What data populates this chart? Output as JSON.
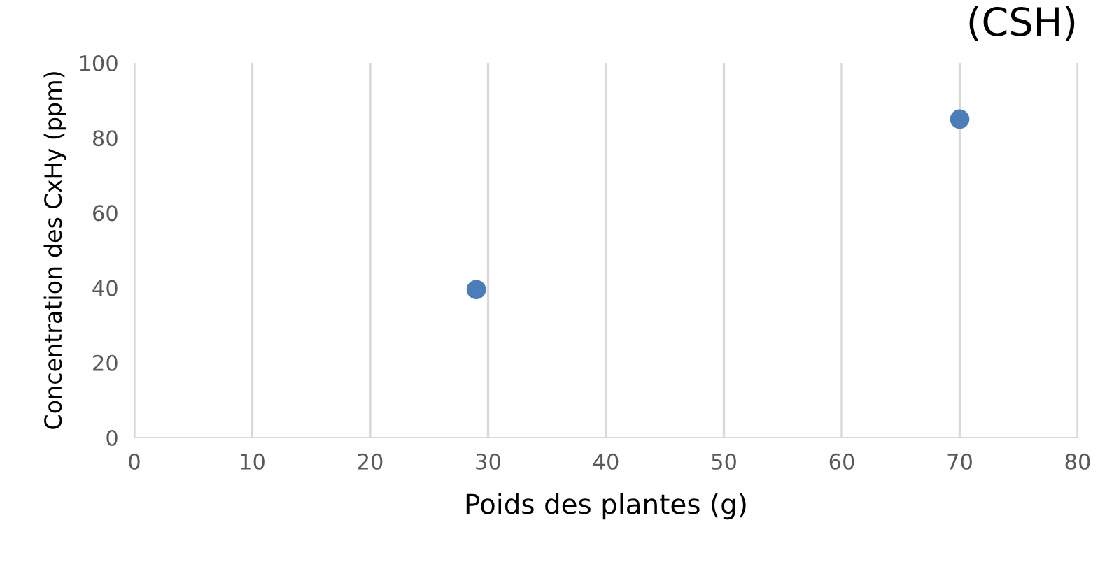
{
  "chart_data": {
    "type": "scatter",
    "title": "(CSH)",
    "xlabel": "Poids des plantes (g)",
    "ylabel": "Concentration des CxHy (ppm)",
    "x": [
      29,
      70
    ],
    "series": [
      {
        "color": "#4a7ebb",
        "values": [
          39.5,
          85
        ]
      }
    ],
    "xlim": [
      0,
      80
    ],
    "xticks": [
      0,
      10,
      20,
      30,
      40,
      50,
      60,
      70,
      80
    ],
    "ylim": [
      0,
      100
    ],
    "yticks": [
      0,
      20,
      40,
      60,
      80,
      100
    ],
    "grid": "x",
    "marker": "circle"
  }
}
